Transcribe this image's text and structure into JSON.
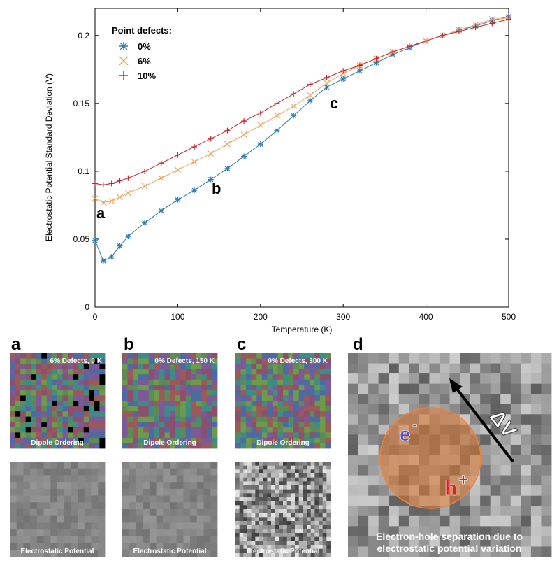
{
  "chart_data": {
    "type": "line",
    "x_label": "Temperature (K)",
    "y_label": "Electrostatic Potential Standard Deviation (V)",
    "legend_title": "Point defects:",
    "legend_position": "upper left",
    "x": [
      0,
      10,
      20,
      30,
      40,
      60,
      80,
      100,
      120,
      140,
      160,
      180,
      200,
      220,
      240,
      260,
      280,
      300,
      320,
      340,
      360,
      380,
      400,
      420,
      440,
      460,
      480,
      500
    ],
    "series": [
      {
        "name": "0%",
        "color": "#2f78b8",
        "marker": "asterisk",
        "values": [
          0.049,
          0.034,
          0.037,
          0.045,
          0.052,
          0.062,
          0.071,
          0.079,
          0.086,
          0.094,
          0.102,
          0.111,
          0.12,
          0.13,
          0.141,
          0.152,
          0.162,
          0.168,
          0.174,
          0.18,
          0.186,
          0.191,
          0.196,
          0.2,
          0.204,
          0.207,
          0.211,
          0.214
        ]
      },
      {
        "name": "6%",
        "color": "#f5a55a",
        "marker": "x",
        "values": [
          0.08,
          0.077,
          0.078,
          0.081,
          0.084,
          0.089,
          0.095,
          0.101,
          0.107,
          0.113,
          0.12,
          0.127,
          0.134,
          0.141,
          0.148,
          0.156,
          0.165,
          0.172,
          0.178,
          0.183,
          0.188,
          0.192,
          0.196,
          0.2,
          0.204,
          0.208,
          0.212,
          0.213
        ]
      },
      {
        "name": "10%",
        "color": "#d0222a",
        "marker": "plus",
        "values": [
          0.091,
          0.09,
          0.091,
          0.093,
          0.095,
          0.1,
          0.106,
          0.112,
          0.118,
          0.124,
          0.13,
          0.137,
          0.143,
          0.15,
          0.157,
          0.164,
          0.169,
          0.174,
          0.178,
          0.183,
          0.188,
          0.192,
          0.196,
          0.2,
          0.203,
          0.206,
          0.209,
          0.212
        ]
      }
    ],
    "xlim": [
      0,
      500
    ],
    "xticks": [
      0,
      100,
      200,
      300,
      400,
      500
    ],
    "ylim": [
      0,
      0.22
    ],
    "yticks": [
      0,
      0.05,
      0.1,
      0.15,
      0.2
    ],
    "annotations": [
      "a",
      "b",
      "c"
    ]
  },
  "panels": [
    {
      "label": "a",
      "title": "6% Defects, 0 K",
      "top_caption": "Dipole Ordering",
      "bottom_caption": "Electrostatic Potential"
    },
    {
      "label": "b",
      "title": "0% Defects, 150 K",
      "top_caption": "Dipole Ordering",
      "bottom_caption": "Electrostatic Potential"
    },
    {
      "label": "c",
      "title": "0% Defects, 300 K",
      "top_caption": "Dipole Ordering",
      "bottom_caption": "Electrostatic Potential"
    }
  ],
  "panel_d": {
    "label": "d",
    "electron": "e",
    "electron_charge": "-",
    "hole": "h",
    "hole_charge": "+",
    "arrow_label": "ΔV",
    "caption_lines": [
      "Electron-hole separation due to",
      "electrostatic potential variation"
    ]
  }
}
